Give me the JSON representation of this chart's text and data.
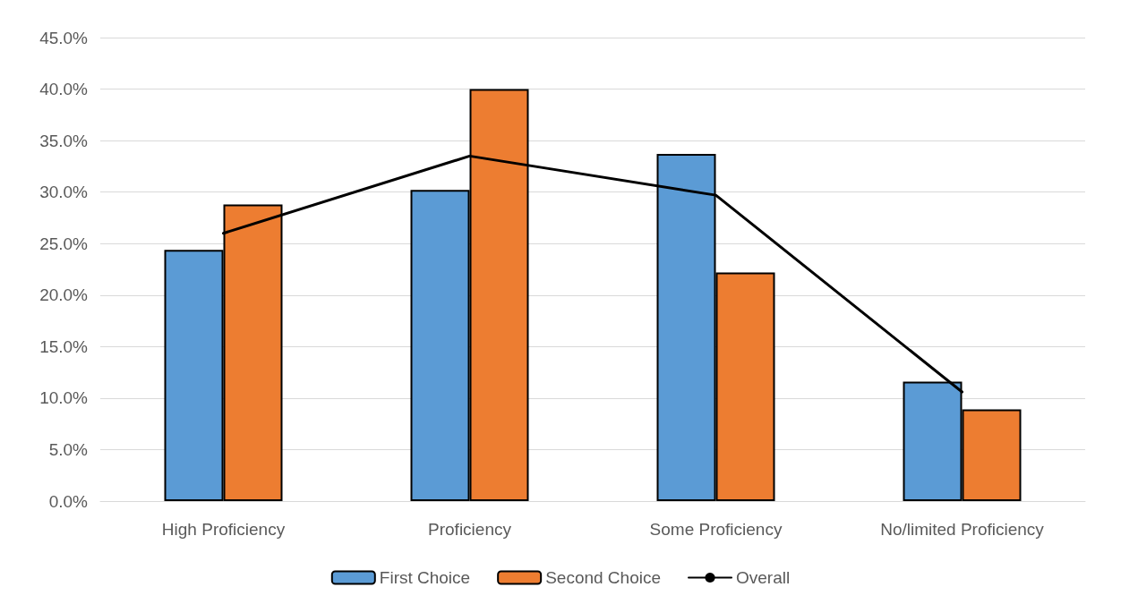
{
  "chart_data": {
    "type": "bar",
    "categories": [
      "High Proficiency",
      "Proficiency",
      "Some Proficiency",
      "No/limited Proficiency"
    ],
    "series": [
      {
        "name": "First Choice",
        "color": "#5b9bd5",
        "values": [
          24.4,
          30.2,
          33.7,
          11.6
        ]
      },
      {
        "name": "Second Choice",
        "color": "#ed7d31",
        "values": [
          28.8,
          40.0,
          22.2,
          8.9
        ]
      },
      {
        "name": "Overall",
        "type": "line",
        "color": "#000000",
        "values": [
          26.0,
          33.5,
          29.7,
          10.6
        ]
      }
    ],
    "ylim": [
      0,
      45
    ],
    "yticks": [
      {
        "value": 0,
        "label": "0.0%"
      },
      {
        "value": 5,
        "label": "5.0%"
      },
      {
        "value": 10,
        "label": "10.0%"
      },
      {
        "value": 15,
        "label": "15.0%"
      },
      {
        "value": 20,
        "label": "20.0%"
      },
      {
        "value": 25,
        "label": "25.0%"
      },
      {
        "value": 30,
        "label": "30.0%"
      },
      {
        "value": 35,
        "label": "35.0%"
      },
      {
        "value": 40,
        "label": "40.0%"
      },
      {
        "value": 45,
        "label": "45.0%"
      }
    ],
    "grid": "y",
    "legend": "bottom",
    "marker": "none",
    "line_style": "solid"
  }
}
